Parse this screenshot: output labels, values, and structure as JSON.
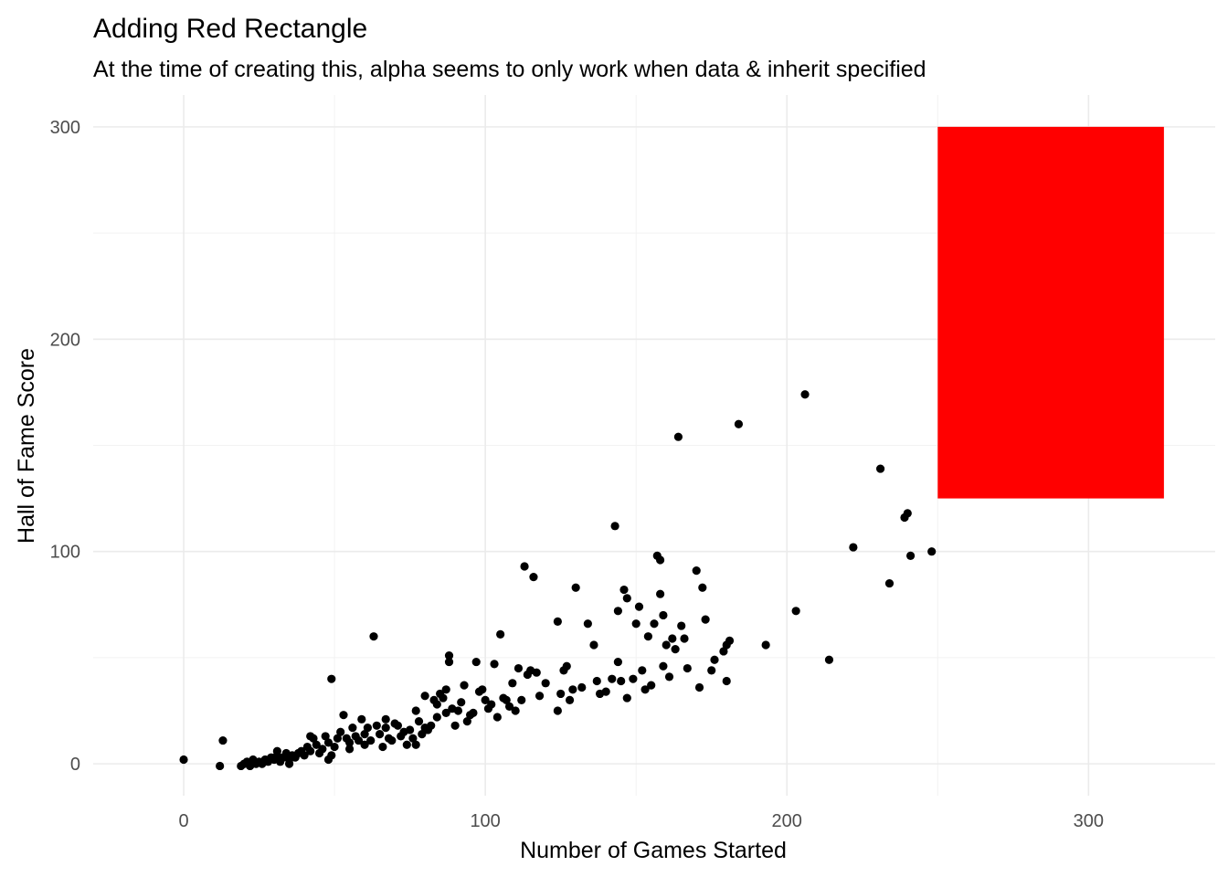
{
  "chart_data": {
    "type": "scatter",
    "title": "Adding Red Rectangle",
    "subtitle": "At the time of creating this, alpha seems to only work when data & inherit specified",
    "xlabel": "Number of Games Started",
    "ylabel": "Hall of Fame Score",
    "xlim": [
      -30,
      342
    ],
    "ylim": [
      -15,
      315
    ],
    "xticks": [
      0,
      100,
      200,
      300
    ],
    "yticks": [
      0,
      100,
      200,
      300
    ],
    "grid": true,
    "point_color": "#000000",
    "annotations": [
      {
        "type": "rect",
        "xmin": 250,
        "xmax": 325,
        "ymin": 125,
        "ymax": 300,
        "fill": "#ff0000"
      }
    ],
    "points": [
      [
        0,
        2
      ],
      [
        12,
        -1
      ],
      [
        13,
        11
      ],
      [
        19,
        -1
      ],
      [
        20,
        0
      ],
      [
        21,
        1
      ],
      [
        22,
        -1
      ],
      [
        23,
        2
      ],
      [
        24,
        0
      ],
      [
        25,
        1
      ],
      [
        26,
        0
      ],
      [
        27,
        2
      ],
      [
        28,
        1
      ],
      [
        29,
        3
      ],
      [
        30,
        2
      ],
      [
        31,
        6
      ],
      [
        31,
        4
      ],
      [
        32,
        1
      ],
      [
        33,
        3
      ],
      [
        34,
        5
      ],
      [
        35,
        0
      ],
      [
        35,
        2
      ],
      [
        36,
        4
      ],
      [
        37,
        3
      ],
      [
        38,
        5
      ],
      [
        39,
        6
      ],
      [
        40,
        4
      ],
      [
        41,
        8
      ],
      [
        42,
        6
      ],
      [
        42,
        13
      ],
      [
        43,
        12
      ],
      [
        44,
        9
      ],
      [
        45,
        5
      ],
      [
        46,
        7
      ],
      [
        47,
        13
      ],
      [
        48,
        2
      ],
      [
        48,
        10
      ],
      [
        49,
        4
      ],
      [
        49,
        40
      ],
      [
        50,
        8
      ],
      [
        51,
        12
      ],
      [
        52,
        15
      ],
      [
        53,
        23
      ],
      [
        54,
        12
      ],
      [
        55,
        7
      ],
      [
        55,
        10
      ],
      [
        56,
        17
      ],
      [
        57,
        13
      ],
      [
        58,
        11
      ],
      [
        59,
        21
      ],
      [
        60,
        14
      ],
      [
        60,
        9
      ],
      [
        61,
        17
      ],
      [
        62,
        11
      ],
      [
        63,
        60
      ],
      [
        64,
        18
      ],
      [
        65,
        14
      ],
      [
        66,
        8
      ],
      [
        67,
        21
      ],
      [
        67,
        17
      ],
      [
        68,
        12
      ],
      [
        69,
        11
      ],
      [
        70,
        19
      ],
      [
        71,
        18
      ],
      [
        72,
        13
      ],
      [
        73,
        15
      ],
      [
        74,
        9
      ],
      [
        75,
        16
      ],
      [
        76,
        12
      ],
      [
        77,
        25
      ],
      [
        77,
        9
      ],
      [
        78,
        20
      ],
      [
        79,
        14
      ],
      [
        80,
        17
      ],
      [
        80,
        32
      ],
      [
        81,
        16
      ],
      [
        82,
        18
      ],
      [
        83,
        30
      ],
      [
        84,
        28
      ],
      [
        84,
        22
      ],
      [
        85,
        33
      ],
      [
        86,
        31
      ],
      [
        87,
        35
      ],
      [
        87,
        24
      ],
      [
        88,
        48
      ],
      [
        88,
        51
      ],
      [
        89,
        26
      ],
      [
        90,
        18
      ],
      [
        91,
        25
      ],
      [
        92,
        29
      ],
      [
        93,
        37
      ],
      [
        94,
        20
      ],
      [
        95,
        23
      ],
      [
        96,
        24
      ],
      [
        97,
        48
      ],
      [
        98,
        34
      ],
      [
        99,
        35
      ],
      [
        100,
        30
      ],
      [
        101,
        26
      ],
      [
        102,
        28
      ],
      [
        103,
        47
      ],
      [
        104,
        22
      ],
      [
        105,
        61
      ],
      [
        106,
        31
      ],
      [
        107,
        30
      ],
      [
        108,
        27
      ],
      [
        109,
        38
      ],
      [
        110,
        25
      ],
      [
        111,
        45
      ],
      [
        112,
        30
      ],
      [
        113,
        93
      ],
      [
        114,
        42
      ],
      [
        115,
        44
      ],
      [
        116,
        88
      ],
      [
        117,
        43
      ],
      [
        118,
        32
      ],
      [
        120,
        38
      ],
      [
        124,
        67
      ],
      [
        124,
        25
      ],
      [
        125,
        33
      ],
      [
        126,
        44
      ],
      [
        127,
        46
      ],
      [
        128,
        30
      ],
      [
        129,
        35
      ],
      [
        130,
        83
      ],
      [
        132,
        36
      ],
      [
        134,
        66
      ],
      [
        136,
        56
      ],
      [
        137,
        39
      ],
      [
        138,
        33
      ],
      [
        140,
        34
      ],
      [
        142,
        40
      ],
      [
        143,
        112
      ],
      [
        144,
        48
      ],
      [
        144,
        72
      ],
      [
        145,
        39
      ],
      [
        146,
        82
      ],
      [
        147,
        78
      ],
      [
        147,
        31
      ],
      [
        149,
        40
      ],
      [
        150,
        66
      ],
      [
        151,
        74
      ],
      [
        152,
        44
      ],
      [
        153,
        35
      ],
      [
        154,
        60
      ],
      [
        155,
        37
      ],
      [
        156,
        66
      ],
      [
        157,
        98
      ],
      [
        158,
        80
      ],
      [
        158,
        96
      ],
      [
        159,
        46
      ],
      [
        159,
        70
      ],
      [
        160,
        56
      ],
      [
        161,
        41
      ],
      [
        162,
        59
      ],
      [
        163,
        54
      ],
      [
        164,
        154
      ],
      [
        165,
        65
      ],
      [
        166,
        59
      ],
      [
        167,
        45
      ],
      [
        170,
        91
      ],
      [
        171,
        36
      ],
      [
        172,
        83
      ],
      [
        173,
        68
      ],
      [
        175,
        44
      ],
      [
        176,
        49
      ],
      [
        179,
        53
      ],
      [
        180,
        39
      ],
      [
        180,
        56
      ],
      [
        181,
        58
      ],
      [
        184,
        160
      ],
      [
        193,
        56
      ],
      [
        203,
        72
      ],
      [
        206,
        174
      ],
      [
        214,
        49
      ],
      [
        222,
        102
      ],
      [
        231,
        139
      ],
      [
        234,
        85
      ],
      [
        239,
        116
      ],
      [
        240,
        118
      ],
      [
        241,
        98
      ],
      [
        248,
        100
      ]
    ]
  }
}
